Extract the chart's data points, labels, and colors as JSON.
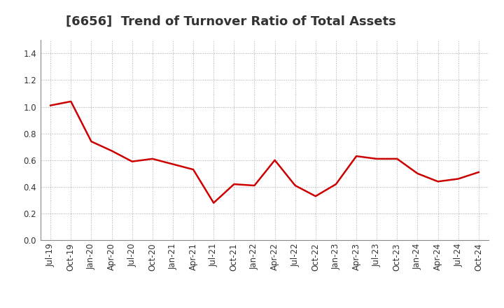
{
  "title": "[6656]  Trend of Turnover Ratio of Total Assets",
  "labels": [
    "Jul-19",
    "Oct-19",
    "Jan-20",
    "Apr-20",
    "Jul-20",
    "Oct-20",
    "Jan-21",
    "Apr-21",
    "Jul-21",
    "Oct-21",
    "Jan-22",
    "Apr-22",
    "Jul-22",
    "Oct-22",
    "Jan-23",
    "Apr-23",
    "Jul-23",
    "Oct-23",
    "Jan-24",
    "Apr-24",
    "Jul-24",
    "Oct-24"
  ],
  "values": [
    1.01,
    1.04,
    0.74,
    0.67,
    0.59,
    0.61,
    0.57,
    0.53,
    0.28,
    0.42,
    0.41,
    0.6,
    0.41,
    0.33,
    0.42,
    0.63,
    0.61,
    0.61,
    0.5,
    0.44,
    0.46,
    0.51
  ],
  "line_color": "#cc0000",
  "line_width": 1.8,
  "ylim": [
    0.0,
    1.5
  ],
  "yticks": [
    0.0,
    0.2,
    0.4,
    0.6,
    0.8,
    1.0,
    1.2,
    1.4
  ],
  "background_color": "#ffffff",
  "grid_color": "#aaaaaa",
  "title_fontsize": 13,
  "tick_fontsize": 8.5,
  "title_color": "#333333",
  "title_fontweight": "bold"
}
